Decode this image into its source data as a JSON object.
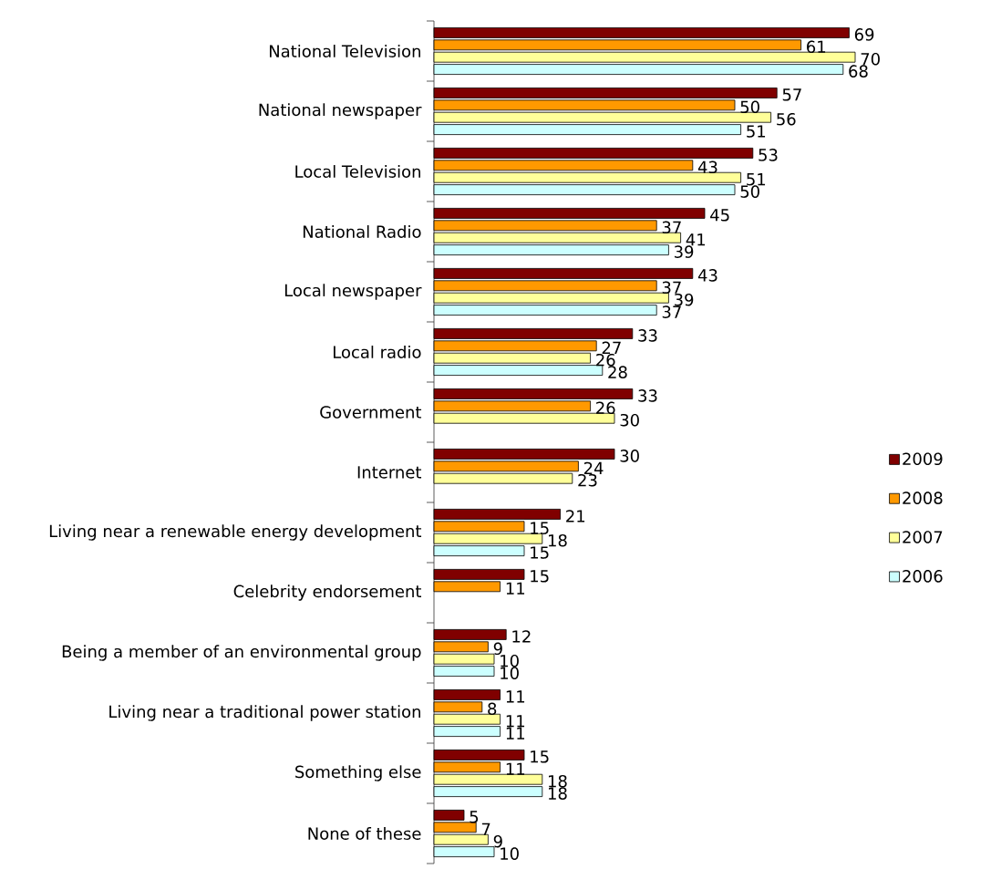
{
  "chart_data": {
    "type": "bar",
    "orientation": "horizontal",
    "categories": [
      "National Television",
      "National newspaper",
      "Local Television",
      "National Radio",
      "Local newspaper",
      "Local radio",
      "Government",
      "Internet",
      "Living near a renewable energy development",
      "Celebrity endorsement",
      "Being a member of an environmental group",
      "Living near a traditional power station",
      "Something else",
      "None of these"
    ],
    "series": [
      {
        "name": "2009",
        "color": "#800000",
        "values": [
          69,
          57,
          53,
          45,
          43,
          33,
          33,
          30,
          21,
          15,
          12,
          11,
          15,
          5
        ]
      },
      {
        "name": "2008",
        "color": "#ff9900",
        "values": [
          61,
          50,
          43,
          37,
          37,
          27,
          26,
          24,
          15,
          11,
          9,
          8,
          11,
          7
        ]
      },
      {
        "name": "2007",
        "color": "#ffff99",
        "values": [
          70,
          56,
          51,
          41,
          39,
          26,
          30,
          23,
          18,
          null,
          10,
          11,
          18,
          9
        ]
      },
      {
        "name": "2006",
        "color": "#ccffff",
        "values": [
          68,
          51,
          50,
          39,
          37,
          28,
          null,
          null,
          15,
          null,
          10,
          11,
          18,
          10
        ]
      }
    ],
    "data_labels": true,
    "legend": "right"
  }
}
